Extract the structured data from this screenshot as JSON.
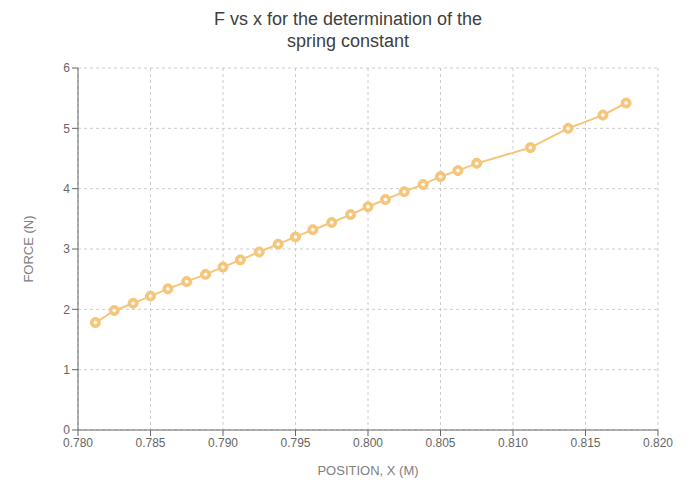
{
  "chart_data": {
    "type": "line",
    "title": "F vs x for the determination of the\nspring constant",
    "xlabel": "POSITION, X (M)",
    "ylabel": "FORCE (N)",
    "x": [
      0.7812,
      0.7825,
      0.7838,
      0.785,
      0.7862,
      0.7875,
      0.7888,
      0.79,
      0.7912,
      0.7925,
      0.7938,
      0.795,
      0.7962,
      0.7975,
      0.7988,
      0.8,
      0.8012,
      0.8025,
      0.8038,
      0.805,
      0.8062,
      0.8075,
      0.8112,
      0.8138,
      0.8162,
      0.8178
    ],
    "values": [
      1.78,
      1.98,
      2.1,
      2.22,
      2.34,
      2.46,
      2.58,
      2.7,
      2.82,
      2.95,
      3.08,
      3.2,
      3.32,
      3.44,
      3.57,
      3.7,
      3.82,
      3.95,
      4.07,
      4.2,
      4.3,
      4.42,
      4.68,
      5.0,
      5.22,
      5.42
    ],
    "color": "#F5C57A",
    "marker": "circle",
    "xlim": [
      0.78,
      0.82
    ],
    "ylim": [
      0,
      6
    ],
    "xticks": [
      {
        "value": 0.78,
        "label": "0.780"
      },
      0.785,
      {
        "value": 0.79,
        "label": "0.790"
      },
      0.795,
      {
        "value": 0.8,
        "label": "0.800"
      },
      0.805,
      {
        "value": 0.81,
        "label": "0.810"
      },
      0.815,
      {
        "value": 0.82,
        "label": "0.820"
      }
    ],
    "yticks": [
      0,
      1,
      2,
      3,
      4,
      5,
      6
    ],
    "grid": true
  }
}
